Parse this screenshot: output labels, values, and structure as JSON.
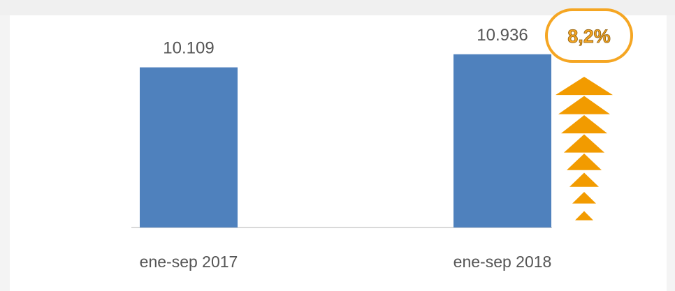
{
  "chart_data": {
    "type": "bar",
    "categories": [
      "ene-sep 2017",
      "ene-sep 2018"
    ],
    "values": [
      10109,
      10936
    ],
    "value_labels": [
      "10.109",
      "10.936"
    ],
    "title": "",
    "xlabel": "",
    "ylabel": "",
    "grid": false,
    "legend": "none",
    "annotation": {
      "text": "8,2%",
      "arrow_count": 8
    },
    "colors": {
      "bar": "#4f81bd",
      "annotation": "#f29b00",
      "annotation_outline": "#f5a623"
    }
  }
}
